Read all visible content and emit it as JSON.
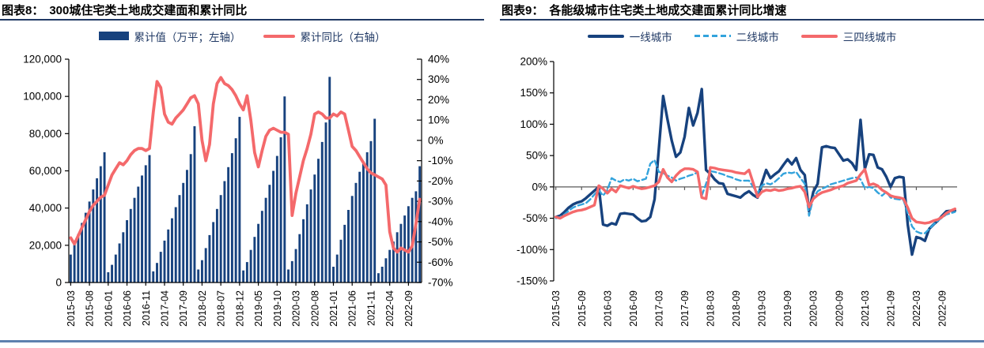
{
  "page": {
    "bottom_rule_color": "#5E81AE",
    "title_rule_color": "#1F3864"
  },
  "figure8": {
    "label": "图表8：",
    "title": "300城住宅类土地成交建面和累计同比",
    "legend": [
      {
        "label": "累计值（万平；左轴）",
        "type": "bar",
        "color": "#17427E"
      },
      {
        "label": "累计同比（右轴）",
        "type": "line",
        "color": "#F4696B"
      }
    ],
    "chart_data": {
      "type": "bar+line",
      "title": "300城住宅类土地成交建面和累计同比",
      "x_months": [
        "2015-03",
        "2015-04",
        "2015-05",
        "2015-06",
        "2015-07",
        "2015-08",
        "2015-09",
        "2015-10",
        "2015-11",
        "2015-12",
        "2016-01",
        "2016-02",
        "2016-03",
        "2016-04",
        "2016-05",
        "2016-06",
        "2016-07",
        "2016-08",
        "2016-09",
        "2016-10",
        "2016-11",
        "2016-12",
        "2017-01",
        "2017-02",
        "2017-03",
        "2017-04",
        "2017-05",
        "2017-06",
        "2017-07",
        "2017-08",
        "2017-09",
        "2017-10",
        "2017-11",
        "2017-12",
        "2018-01",
        "2018-02",
        "2018-03",
        "2018-04",
        "2018-05",
        "2018-06",
        "2018-07",
        "2018-08",
        "2018-09",
        "2018-10",
        "2018-11",
        "2018-12",
        "2019-01",
        "2019-02",
        "2019-03",
        "2019-04",
        "2019-05",
        "2019-06",
        "2019-07",
        "2019-08",
        "2019-09",
        "2019-10",
        "2019-11",
        "2019-12",
        "2020-01",
        "2020-02",
        "2020-03",
        "2020-04",
        "2020-05",
        "2020-06",
        "2020-07",
        "2020-08",
        "2020-09",
        "2020-10",
        "2020-11",
        "2020-12",
        "2021-01",
        "2021-02",
        "2021-03",
        "2021-04",
        "2021-05",
        "2021-06",
        "2021-07",
        "2021-08",
        "2021-09",
        "2021-10",
        "2021-11",
        "2021-12",
        "2022-01",
        "2022-02",
        "2022-03",
        "2022-04",
        "2022-05",
        "2022-06",
        "2022-07",
        "2022-08",
        "2022-09",
        "2022-10",
        "2022-11",
        "2022-12"
      ],
      "x_tick_labels": [
        "2015-03",
        "2015-08",
        "2016-01",
        "2016-06",
        "2016-11",
        "2017-04",
        "2017-09",
        "2018-02",
        "2018-07",
        "2018-12",
        "2019-05",
        "2019-10",
        "2020-03",
        "2020-08",
        "2021-01",
        "2021-06",
        "2021-11",
        "2022-04",
        "2022-09"
      ],
      "left_axis": {
        "min": 0,
        "max": 120000,
        "tick_values": [
          0,
          20000,
          40000,
          60000,
          80000,
          100000,
          120000
        ],
        "tick_labels": [
          "0",
          "20,000",
          "40,000",
          "60,000",
          "80,000",
          "100,000",
          "120,000"
        ]
      },
      "right_axis": {
        "min": -70,
        "max": 40,
        "tick_values": [
          40,
          30,
          20,
          10,
          0,
          -10,
          -20,
          -30,
          -40,
          -50,
          -60,
          -70
        ],
        "tick_labels": [
          "40%",
          "30%",
          "20%",
          "10%",
          "0%",
          "-10%",
          "-20%",
          "-30%",
          "-40%",
          "-50%",
          "-60%",
          "-70%"
        ]
      },
      "series": [
        {
          "name": "累计值（万平；左轴）",
          "type": "bar",
          "axis": "left",
          "color": "#17427E",
          "values": [
            15000,
            20500,
            26000,
            32000,
            37500,
            43500,
            50000,
            56000,
            62500,
            70000,
            5500,
            9500,
            15000,
            21000,
            27000,
            33500,
            39500,
            45500,
            51500,
            57500,
            63000,
            68500,
            6000,
            10500,
            16500,
            22500,
            28500,
            34500,
            40500,
            47000,
            53500,
            60500,
            69000,
            84000,
            7000,
            12000,
            18500,
            25500,
            32500,
            39500,
            47000,
            54500,
            62000,
            69500,
            77500,
            89000,
            6500,
            11000,
            17500,
            24500,
            31500,
            38500,
            45500,
            52500,
            60000,
            68000,
            78000,
            100000,
            7000,
            11500,
            18000,
            26000,
            34000,
            42000,
            50000,
            58000,
            66500,
            75500,
            86000,
            110500,
            8500,
            15000,
            23000,
            31000,
            39000,
            46500,
            53500,
            59500,
            65000,
            70000,
            76000,
            88000,
            5000,
            8500,
            13000,
            17500,
            22000,
            27000,
            31500,
            36000,
            41000,
            45500,
            49000,
            62500
          ]
        },
        {
          "name": "累计同比（右轴）",
          "type": "line",
          "axis": "right",
          "color": "#F4696B",
          "unit": "%",
          "values": [
            -48,
            -51,
            -47,
            -43,
            -39,
            -35,
            -32,
            -30,
            -28,
            -27,
            -22,
            -17,
            -14,
            -11,
            -12,
            -10,
            -7,
            -5,
            -4,
            -4,
            -5,
            -4,
            14,
            29,
            26,
            13,
            9,
            8,
            11,
            13,
            15,
            18,
            21,
            22,
            18,
            0,
            -10,
            -2,
            18,
            28,
            31,
            28,
            27,
            25,
            22,
            18,
            15,
            22,
            10,
            -6,
            -13,
            -5,
            2,
            5,
            6,
            5,
            4,
            4,
            3,
            -37,
            -26,
            -18,
            -10,
            -4,
            3,
            13,
            14,
            13,
            11,
            11,
            13,
            12,
            14,
            13,
            5,
            -3,
            -5,
            -8,
            -11,
            -14,
            -16,
            -17,
            -18,
            -19,
            -22,
            -45,
            -53,
            -55,
            -53,
            -54,
            -55,
            -52,
            -41,
            -29
          ]
        }
      ]
    }
  },
  "figure9": {
    "label": "图表9：",
    "title": "各能级城市住宅类土地成交建面累计同比增速",
    "legend": [
      {
        "label": "一线城市",
        "type": "line",
        "style": "solid",
        "color": "#17427E"
      },
      {
        "label": "二线城市",
        "type": "line",
        "style": "dashed",
        "color": "#33A3DC"
      },
      {
        "label": "三四线城市",
        "type": "line",
        "style": "solid",
        "color": "#F4696B"
      }
    ],
    "chart_data": {
      "type": "line",
      "title": "各能级城市住宅类土地成交建面累计同比增速",
      "x_months": [
        "2015-03",
        "2015-04",
        "2015-05",
        "2015-06",
        "2015-07",
        "2015-08",
        "2015-09",
        "2015-10",
        "2015-11",
        "2015-12",
        "2016-01",
        "2016-02",
        "2016-03",
        "2016-04",
        "2016-05",
        "2016-06",
        "2016-07",
        "2016-08",
        "2016-09",
        "2016-10",
        "2016-11",
        "2016-12",
        "2017-01",
        "2017-02",
        "2017-03",
        "2017-04",
        "2017-05",
        "2017-06",
        "2017-07",
        "2017-08",
        "2017-09",
        "2017-10",
        "2017-11",
        "2017-12",
        "2018-01",
        "2018-02",
        "2018-03",
        "2018-04",
        "2018-05",
        "2018-06",
        "2018-07",
        "2018-08",
        "2018-09",
        "2018-10",
        "2018-11",
        "2018-12",
        "2019-01",
        "2019-02",
        "2019-03",
        "2019-04",
        "2019-05",
        "2019-06",
        "2019-07",
        "2019-08",
        "2019-09",
        "2019-10",
        "2019-11",
        "2019-12",
        "2020-01",
        "2020-02",
        "2020-03",
        "2020-04",
        "2020-05",
        "2020-06",
        "2020-07",
        "2020-08",
        "2020-09",
        "2020-10",
        "2020-11",
        "2020-12",
        "2021-01",
        "2021-02",
        "2021-03",
        "2021-04",
        "2021-05",
        "2021-06",
        "2021-07",
        "2021-08",
        "2021-09",
        "2021-10",
        "2021-11",
        "2021-12",
        "2022-01",
        "2022-02",
        "2022-03",
        "2022-04",
        "2022-05",
        "2022-06",
        "2022-07",
        "2022-08",
        "2022-09",
        "2022-10",
        "2022-11",
        "2022-12"
      ],
      "x_tick_labels": [
        "2015-03",
        "2015-09",
        "2016-03",
        "2016-09",
        "2017-03",
        "2017-09",
        "2018-03",
        "2018-09",
        "2019-03",
        "2019-09",
        "2020-03",
        "2020-09",
        "2021-03",
        "2021-09",
        "2022-03",
        "2022-09"
      ],
      "y_axis": {
        "min": -150,
        "max": 200,
        "unit": "%",
        "tick_values": [
          200,
          150,
          100,
          50,
          0,
          -50,
          -100,
          -150
        ],
        "tick_labels": [
          "200%",
          "150%",
          "100%",
          "50%",
          "0%",
          "-50%",
          "-100%",
          "-150%"
        ]
      },
      "series": [
        {
          "name": "一线城市",
          "style": "solid",
          "color": "#17427E",
          "unit": "%",
          "values": [
            -48,
            -46,
            -40,
            -33,
            -28,
            -25,
            -23,
            -18,
            -12,
            -6,
            0,
            -60,
            -62,
            -58,
            -60,
            -43,
            -42,
            -43,
            -44,
            -50,
            -55,
            -54,
            -48,
            -20,
            60,
            145,
            108,
            74,
            48,
            55,
            80,
            126,
            98,
            118,
            156,
            27,
            21,
            12,
            6,
            5,
            -11,
            -13,
            -15,
            -17,
            -11,
            -7,
            -13,
            -17,
            6,
            27,
            14,
            20,
            25,
            35,
            44,
            36,
            46,
            27,
            19,
            -39,
            -8,
            5,
            63,
            65,
            63,
            62,
            52,
            42,
            44,
            38,
            27,
            107,
            29,
            52,
            51,
            31,
            28,
            16,
            0,
            14,
            16,
            15,
            -60,
            -108,
            -80,
            -82,
            -86,
            -67,
            -60,
            -54,
            -46,
            -39,
            -38,
            -38
          ]
        },
        {
          "name": "二线城市",
          "style": "dashed",
          "color": "#33A3DC",
          "unit": "%",
          "values": [
            -50,
            -48,
            -44,
            -38,
            -33,
            -30,
            -28,
            -26,
            -20,
            -12,
            -5,
            -14,
            -5,
            14,
            10,
            8,
            12,
            10,
            13,
            9,
            11,
            13,
            37,
            43,
            24,
            22,
            18,
            15,
            10,
            13,
            15,
            18,
            20,
            23,
            -14,
            5,
            25,
            24,
            22,
            20,
            17,
            15,
            12,
            10,
            10,
            10,
            0,
            -10,
            2,
            6,
            4,
            8,
            14,
            21,
            23,
            22,
            24,
            14,
            5,
            -46,
            -17,
            -7,
            -3,
            0,
            4,
            6,
            8,
            10,
            12,
            14,
            15,
            12,
            -2,
            0,
            -2,
            -9,
            -14,
            -8,
            -17,
            -19,
            -20,
            -21,
            -42,
            -63,
            -71,
            -74,
            -74,
            -67,
            -60,
            -54,
            -49,
            -44,
            -42,
            -40
          ]
        },
        {
          "name": "三四线城市",
          "style": "solid",
          "color": "#F4696B",
          "unit": "%",
          "values": [
            -48,
            -50,
            -46,
            -43,
            -40,
            -38,
            -37,
            -35,
            -32,
            -29,
            2,
            -3,
            -10,
            -3,
            -8,
            2,
            0,
            -2,
            1,
            -1,
            -3,
            -2,
            0,
            2,
            8,
            28,
            15,
            8,
            18,
            25,
            29,
            29,
            28,
            24,
            -17,
            -19,
            31,
            30,
            28,
            27,
            26,
            25,
            23,
            22,
            21,
            27,
            6,
            -16,
            -8,
            -5,
            -6,
            -4,
            -6,
            -5,
            -3,
            -2,
            0,
            1,
            -8,
            -32,
            -19,
            -13,
            -9,
            -7,
            -5,
            -2,
            0,
            2,
            6,
            8,
            10,
            20,
            28,
            3,
            5,
            2,
            -5,
            -9,
            -14,
            -16,
            -17,
            -19,
            -33,
            -50,
            -56,
            -57,
            -58,
            -57,
            -54,
            -52,
            -48,
            -42,
            -38,
            -35
          ]
        }
      ]
    }
  }
}
